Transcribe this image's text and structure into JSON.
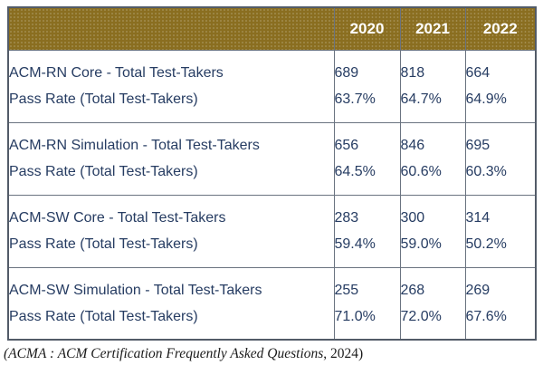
{
  "table": {
    "header_years": [
      "2020",
      "2021",
      "2022"
    ],
    "rows": [
      {
        "metric_label": "ACM-RN Core - Total Test-Takers",
        "rate_label": "Pass Rate (Total Test-Takers)",
        "values": [
          "689",
          "818",
          "664"
        ],
        "rates": [
          "63.7%",
          "64.7%",
          "64.9%"
        ]
      },
      {
        "metric_label": "ACM-RN Simulation - Total Test-Takers",
        "rate_label": "Pass Rate (Total Test-Takers)",
        "values": [
          "656",
          "846",
          "695"
        ],
        "rates": [
          "64.5%",
          "60.6%",
          "60.3%"
        ]
      },
      {
        "metric_label": "ACM-SW Core - Total Test-Takers",
        "rate_label": "Pass Rate (Total Test-Takers)",
        "values": [
          "283",
          "300",
          "314"
        ],
        "rates": [
          "59.4%",
          "59.0%",
          "50.2%"
        ]
      },
      {
        "metric_label": "ACM-SW Simulation - Total Test-Takers",
        "rate_label": "Pass Rate (Total Test-Takers)",
        "values": [
          "255",
          "268",
          "269"
        ],
        "rates": [
          "71.0%",
          "72.0%",
          "67.6%"
        ]
      }
    ]
  },
  "caption": {
    "italic_part": "(ACMA : ACM Certification Frequently Asked Questions",
    "plain_part": ", 2024)"
  },
  "colors": {
    "header_bg": "#8a6e20",
    "header_text": "#ffffff",
    "body_text": "#263c62",
    "border": "#6a7380",
    "outer_border": "#525b68"
  }
}
